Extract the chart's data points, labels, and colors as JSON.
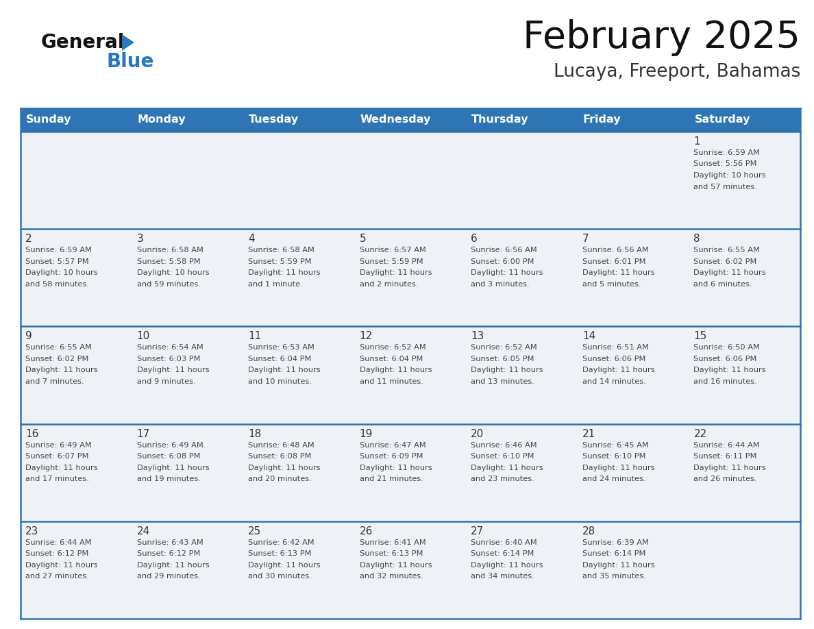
{
  "title": "February 2025",
  "subtitle": "Lucaya, Freeport, Bahamas",
  "days_of_week": [
    "Sunday",
    "Monday",
    "Tuesday",
    "Wednesday",
    "Thursday",
    "Friday",
    "Saturday"
  ],
  "header_bg_color": "#2e75b6",
  "header_text_color": "#ffffff",
  "cell_bg_light": "#eef2f7",
  "cell_bg_white": "#ffffff",
  "day_number_color": "#333333",
  "info_text_color": "#444444",
  "border_color": "#2e75b6",
  "title_color": "#111111",
  "subtitle_color": "#333333",
  "logo_general_color": "#111111",
  "logo_blue_color": "#2878bf",
  "calendar_data": [
    {
      "day": 1,
      "row": 0,
      "col": 6,
      "sunrise": "6:59 AM",
      "sunset": "5:56 PM",
      "daylight_line1": "Daylight: 10 hours",
      "daylight_line2": "and 57 minutes."
    },
    {
      "day": 2,
      "row": 1,
      "col": 0,
      "sunrise": "6:59 AM",
      "sunset": "5:57 PM",
      "daylight_line1": "Daylight: 10 hours",
      "daylight_line2": "and 58 minutes."
    },
    {
      "day": 3,
      "row": 1,
      "col": 1,
      "sunrise": "6:58 AM",
      "sunset": "5:58 PM",
      "daylight_line1": "Daylight: 10 hours",
      "daylight_line2": "and 59 minutes."
    },
    {
      "day": 4,
      "row": 1,
      "col": 2,
      "sunrise": "6:58 AM",
      "sunset": "5:59 PM",
      "daylight_line1": "Daylight: 11 hours",
      "daylight_line2": "and 1 minute."
    },
    {
      "day": 5,
      "row": 1,
      "col": 3,
      "sunrise": "6:57 AM",
      "sunset": "5:59 PM",
      "daylight_line1": "Daylight: 11 hours",
      "daylight_line2": "and 2 minutes."
    },
    {
      "day": 6,
      "row": 1,
      "col": 4,
      "sunrise": "6:56 AM",
      "sunset": "6:00 PM",
      "daylight_line1": "Daylight: 11 hours",
      "daylight_line2": "and 3 minutes."
    },
    {
      "day": 7,
      "row": 1,
      "col": 5,
      "sunrise": "6:56 AM",
      "sunset": "6:01 PM",
      "daylight_line1": "Daylight: 11 hours",
      "daylight_line2": "and 5 minutes."
    },
    {
      "day": 8,
      "row": 1,
      "col": 6,
      "sunrise": "6:55 AM",
      "sunset": "6:02 PM",
      "daylight_line1": "Daylight: 11 hours",
      "daylight_line2": "and 6 minutes."
    },
    {
      "day": 9,
      "row": 2,
      "col": 0,
      "sunrise": "6:55 AM",
      "sunset": "6:02 PM",
      "daylight_line1": "Daylight: 11 hours",
      "daylight_line2": "and 7 minutes."
    },
    {
      "day": 10,
      "row": 2,
      "col": 1,
      "sunrise": "6:54 AM",
      "sunset": "6:03 PM",
      "daylight_line1": "Daylight: 11 hours",
      "daylight_line2": "and 9 minutes."
    },
    {
      "day": 11,
      "row": 2,
      "col": 2,
      "sunrise": "6:53 AM",
      "sunset": "6:04 PM",
      "daylight_line1": "Daylight: 11 hours",
      "daylight_line2": "and 10 minutes."
    },
    {
      "day": 12,
      "row": 2,
      "col": 3,
      "sunrise": "6:52 AM",
      "sunset": "6:04 PM",
      "daylight_line1": "Daylight: 11 hours",
      "daylight_line2": "and 11 minutes."
    },
    {
      "day": 13,
      "row": 2,
      "col": 4,
      "sunrise": "6:52 AM",
      "sunset": "6:05 PM",
      "daylight_line1": "Daylight: 11 hours",
      "daylight_line2": "and 13 minutes."
    },
    {
      "day": 14,
      "row": 2,
      "col": 5,
      "sunrise": "6:51 AM",
      "sunset": "6:06 PM",
      "daylight_line1": "Daylight: 11 hours",
      "daylight_line2": "and 14 minutes."
    },
    {
      "day": 15,
      "row": 2,
      "col": 6,
      "sunrise": "6:50 AM",
      "sunset": "6:06 PM",
      "daylight_line1": "Daylight: 11 hours",
      "daylight_line2": "and 16 minutes."
    },
    {
      "day": 16,
      "row": 3,
      "col": 0,
      "sunrise": "6:49 AM",
      "sunset": "6:07 PM",
      "daylight_line1": "Daylight: 11 hours",
      "daylight_line2": "and 17 minutes."
    },
    {
      "day": 17,
      "row": 3,
      "col": 1,
      "sunrise": "6:49 AM",
      "sunset": "6:08 PM",
      "daylight_line1": "Daylight: 11 hours",
      "daylight_line2": "and 19 minutes."
    },
    {
      "day": 18,
      "row": 3,
      "col": 2,
      "sunrise": "6:48 AM",
      "sunset": "6:08 PM",
      "daylight_line1": "Daylight: 11 hours",
      "daylight_line2": "and 20 minutes."
    },
    {
      "day": 19,
      "row": 3,
      "col": 3,
      "sunrise": "6:47 AM",
      "sunset": "6:09 PM",
      "daylight_line1": "Daylight: 11 hours",
      "daylight_line2": "and 21 minutes."
    },
    {
      "day": 20,
      "row": 3,
      "col": 4,
      "sunrise": "6:46 AM",
      "sunset": "6:10 PM",
      "daylight_line1": "Daylight: 11 hours",
      "daylight_line2": "and 23 minutes."
    },
    {
      "day": 21,
      "row": 3,
      "col": 5,
      "sunrise": "6:45 AM",
      "sunset": "6:10 PM",
      "daylight_line1": "Daylight: 11 hours",
      "daylight_line2": "and 24 minutes."
    },
    {
      "day": 22,
      "row": 3,
      "col": 6,
      "sunrise": "6:44 AM",
      "sunset": "6:11 PM",
      "daylight_line1": "Daylight: 11 hours",
      "daylight_line2": "and 26 minutes."
    },
    {
      "day": 23,
      "row": 4,
      "col": 0,
      "sunrise": "6:44 AM",
      "sunset": "6:12 PM",
      "daylight_line1": "Daylight: 11 hours",
      "daylight_line2": "and 27 minutes."
    },
    {
      "day": 24,
      "row": 4,
      "col": 1,
      "sunrise": "6:43 AM",
      "sunset": "6:12 PM",
      "daylight_line1": "Daylight: 11 hours",
      "daylight_line2": "and 29 minutes."
    },
    {
      "day": 25,
      "row": 4,
      "col": 2,
      "sunrise": "6:42 AM",
      "sunset": "6:13 PM",
      "daylight_line1": "Daylight: 11 hours",
      "daylight_line2": "and 30 minutes."
    },
    {
      "day": 26,
      "row": 4,
      "col": 3,
      "sunrise": "6:41 AM",
      "sunset": "6:13 PM",
      "daylight_line1": "Daylight: 11 hours",
      "daylight_line2": "and 32 minutes."
    },
    {
      "day": 27,
      "row": 4,
      "col": 4,
      "sunrise": "6:40 AM",
      "sunset": "6:14 PM",
      "daylight_line1": "Daylight: 11 hours",
      "daylight_line2": "and 34 minutes."
    },
    {
      "day": 28,
      "row": 4,
      "col": 5,
      "sunrise": "6:39 AM",
      "sunset": "6:14 PM",
      "daylight_line1": "Daylight: 11 hours",
      "daylight_line2": "and 35 minutes."
    }
  ]
}
